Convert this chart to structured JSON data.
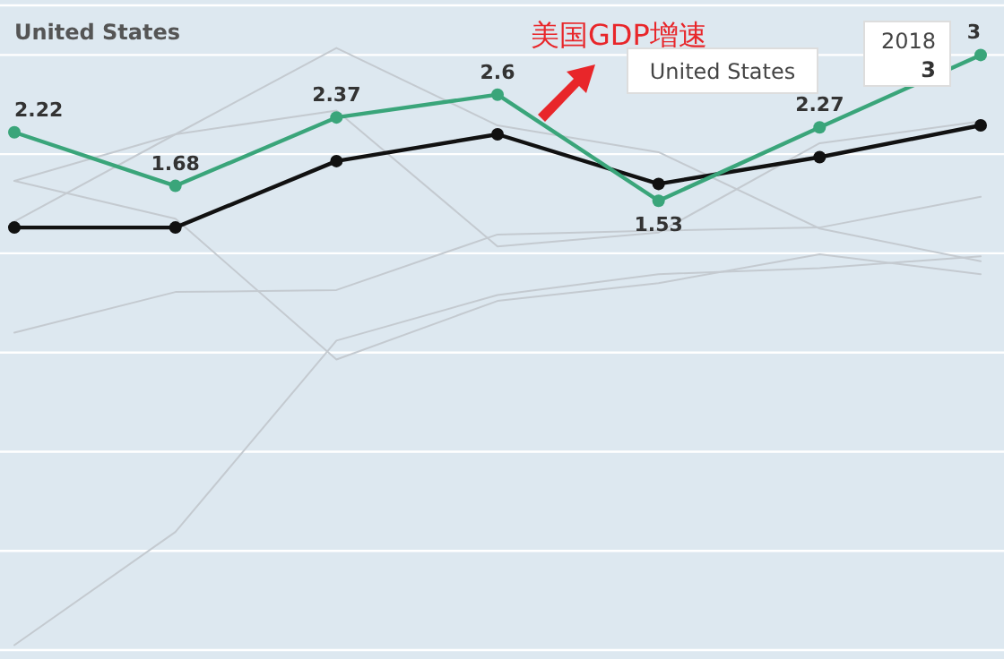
{
  "chart_data": {
    "type": "line",
    "title": "United States",
    "categories": [
      null,
      null,
      null,
      null,
      null,
      null,
      null
    ],
    "ylim": [
      -3,
      3.5
    ],
    "yticks": [
      {
        "value": -3,
        "label": null
      },
      {
        "value": -2,
        "label": null
      },
      {
        "value": -1,
        "label": null
      },
      {
        "value": 0,
        "label": null
      },
      {
        "value": 1,
        "label": null
      },
      {
        "value": 2,
        "label": null
      },
      {
        "value": 3,
        "label": null
      },
      {
        "value": 3.5,
        "label": null
      }
    ],
    "grid": "y",
    "series": [
      {
        "color": "#c4cad0",
        "marker": "none",
        "values": [
          1.32,
          2.2,
          3.07,
          2.29,
          2.02,
          1.25,
          0.92
        ]
      },
      {
        "color": "#c4cad0",
        "marker": "none",
        "values": [
          1.73,
          2.2,
          2.44,
          1.07,
          1.21,
          2.11,
          2.33
        ]
      },
      {
        "color": "#c4cad0",
        "marker": "none",
        "values": [
          1.73,
          1.35,
          -0.07,
          0.52,
          0.7,
          0.99,
          0.79
        ]
      },
      {
        "color": "#c4cad0",
        "marker": "none",
        "values": [
          -2.95,
          -1.81,
          0.12,
          0.58,
          0.79,
          0.85,
          0.97
        ]
      },
      {
        "color": "#c4cad0",
        "marker": "none",
        "values": [
          0.2,
          0.61,
          0.63,
          1.19,
          1.23,
          1.26,
          1.57
        ]
      },
      {
        "color": "#111111",
        "marker": "circle",
        "values": [
          1.26,
          1.26,
          1.93,
          2.2,
          1.7,
          1.97,
          2.29
        ]
      },
      {
        "color": "#3aa57a",
        "marker": "circle",
        "values": [
          2.22,
          1.68,
          2.37,
          2.6,
          1.53,
          2.27,
          3
        ],
        "value_labels": [
          "2.22",
          "1.68",
          "2.37",
          "2.6",
          "1.53",
          "2.27",
          "3"
        ]
      }
    ],
    "annotations": [
      "美国GDP增速",
      "United States",
      "2018",
      "3"
    ]
  }
}
